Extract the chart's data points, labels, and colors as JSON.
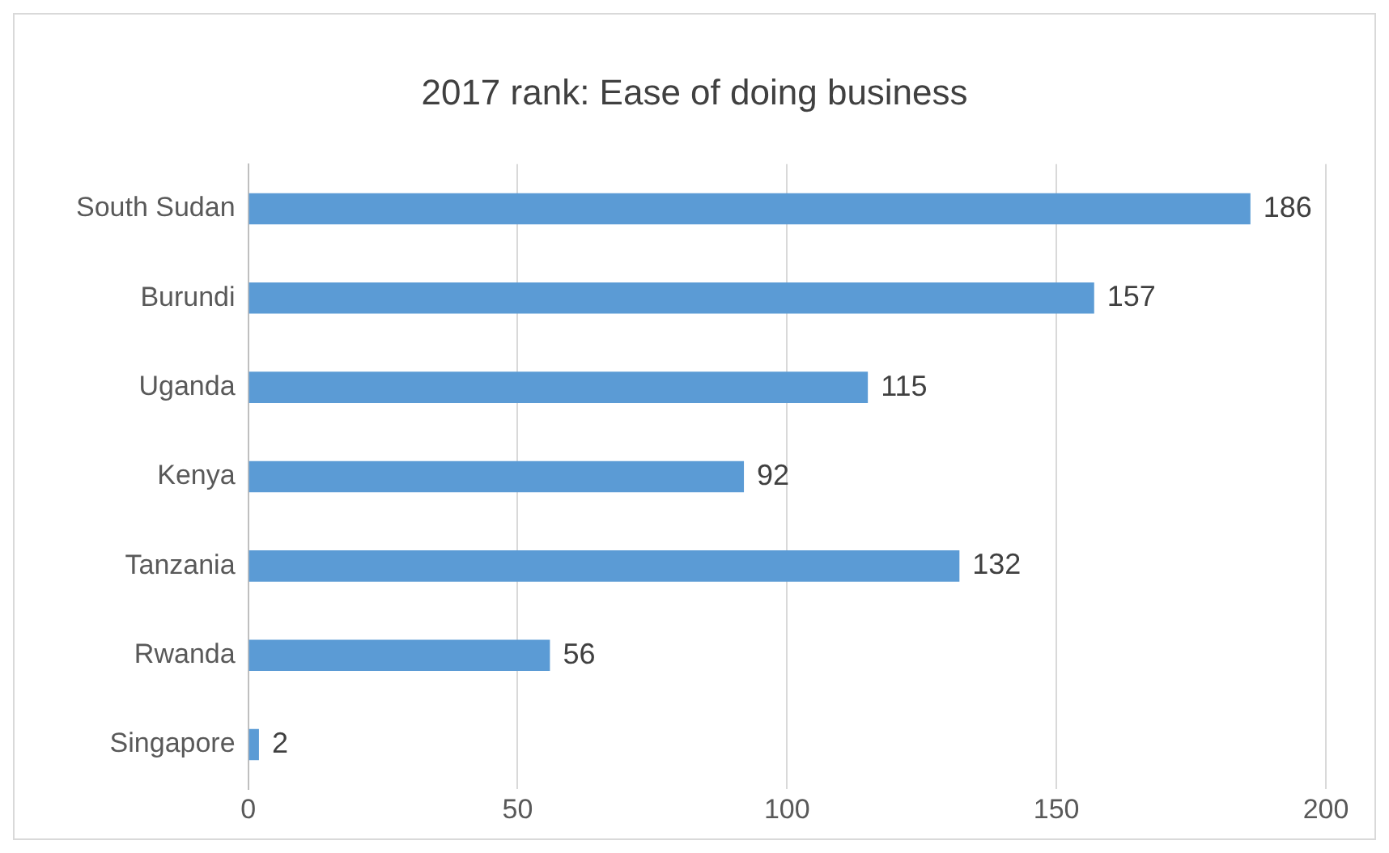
{
  "chart_data": {
    "type": "bar",
    "orientation": "horizontal",
    "title": "2017 rank: Ease of doing business",
    "categories": [
      "South Sudan",
      "Burundi",
      "Uganda",
      "Kenya",
      "Tanzania",
      "Rwanda",
      "Singapore"
    ],
    "values": [
      186,
      157,
      115,
      92,
      132,
      56,
      2
    ],
    "color": "#5b9bd5",
    "xlim": [
      0,
      200
    ],
    "xticks": [
      0,
      50,
      100,
      150,
      200
    ],
    "grid": "x",
    "data_labels": true,
    "legend": false
  }
}
